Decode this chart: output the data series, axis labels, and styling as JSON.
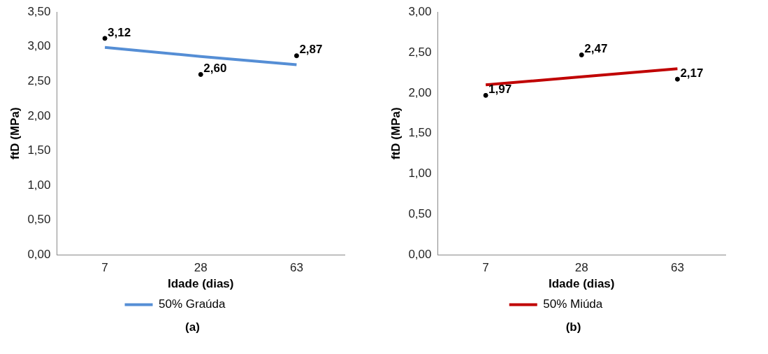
{
  "chart_data": [
    {
      "type": "line",
      "categories": [
        "7",
        "28",
        "63"
      ],
      "xlabel": "Idade (dias)",
      "ylabel": "ftD (MPa)",
      "ylim": [
        0,
        3.5
      ],
      "yticks": [
        {
          "value": 0,
          "label": "0,00"
        },
        {
          "value": 0.5,
          "label": "0,50"
        },
        {
          "value": 1,
          "label": "1,00"
        },
        {
          "value": 1.5,
          "label": "1,50"
        },
        {
          "value": 2,
          "label": "2,00"
        },
        {
          "value": 2.5,
          "label": "2,50"
        },
        {
          "value": 3,
          "label": "3,00"
        },
        {
          "value": 3.5,
          "label": "3,50"
        }
      ],
      "series": [
        {
          "type": "scatter",
          "marker": "circle",
          "color": "#000000",
          "values": [
            3.12,
            2.6,
            2.87
          ],
          "value_labels": [
            "3,12",
            "2,60",
            "2,87"
          ]
        },
        {
          "type": "line",
          "name": "50% Graúda",
          "color": "#558ed5",
          "values": [
            2.99,
            2.86,
            2.74
          ]
        }
      ],
      "legend": "bottom",
      "annotations": [
        "(a)"
      ]
    },
    {
      "type": "line",
      "categories": [
        "7",
        "28",
        "63"
      ],
      "xlabel": "Idade (dias)",
      "ylabel": "ftD (MPa)",
      "ylim": [
        0,
        3
      ],
      "yticks": [
        {
          "value": 0,
          "label": "0,00"
        },
        {
          "value": 0.5,
          "label": "0,50"
        },
        {
          "value": 1,
          "label": "1,00"
        },
        {
          "value": 1.5,
          "label": "1,50"
        },
        {
          "value": 2,
          "label": "2,00"
        },
        {
          "value": 2.5,
          "label": "2,50"
        },
        {
          "value": 3,
          "label": "3,00"
        }
      ],
      "series": [
        {
          "type": "scatter",
          "marker": "circle",
          "color": "#000000",
          "values": [
            1.97,
            2.47,
            2.17
          ],
          "value_labels": [
            "1,97",
            "2,47",
            "2,17"
          ]
        },
        {
          "type": "line",
          "name": "50% Miúda",
          "color": "#c00000",
          "values": [
            2.1,
            2.2,
            2.3
          ]
        }
      ],
      "legend": "bottom",
      "annotations": [
        "(b)"
      ]
    }
  ]
}
